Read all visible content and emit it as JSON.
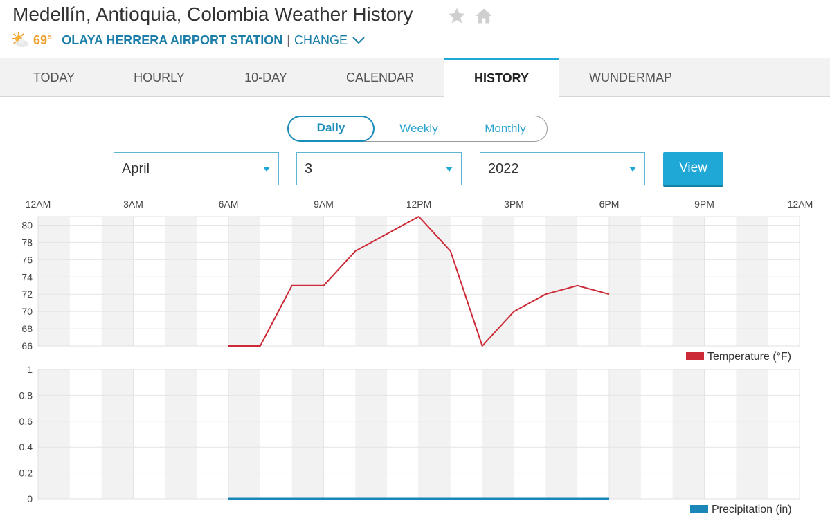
{
  "header": {
    "title": "Medellín, Antioquia, Colombia Weather History",
    "current_temp": "69°",
    "station_name": "OLAYA HERRERA AIRPORT STATION",
    "separator": "|",
    "change_label": "CHANGE"
  },
  "tabs": [
    {
      "label": "TODAY"
    },
    {
      "label": "HOURLY"
    },
    {
      "label": "10-DAY"
    },
    {
      "label": "CALENDAR"
    },
    {
      "label": "HISTORY"
    },
    {
      "label": "WUNDERMAP"
    }
  ],
  "period_toggle": {
    "daily": "Daily",
    "weekly": "Weekly",
    "monthly": "Monthly",
    "selected": "Daily"
  },
  "date_selects": {
    "month": "April",
    "day": "3",
    "year": "2022"
  },
  "view_button": "View",
  "colors": {
    "accent": "#1fa8d6",
    "temperature": "#cc2a36",
    "precipitation": "#1a87b8"
  },
  "chart_data": [
    {
      "type": "line",
      "legend": "Temperature (°F)",
      "x_tick_labels": [
        "12AM",
        "3AM",
        "6AM",
        "9AM",
        "12PM",
        "3PM",
        "6PM",
        "9PM",
        "12AM"
      ],
      "y_tick_labels": [
        "80",
        "78",
        "76",
        "74",
        "72",
        "70",
        "68",
        "66"
      ],
      "ylim": [
        66,
        81
      ],
      "xlim_hours": [
        0,
        24
      ],
      "series": [
        {
          "x_hours": [
            6,
            7,
            8,
            9,
            10,
            11,
            12,
            13,
            14,
            15,
            16,
            17,
            18
          ],
          "values": [
            66,
            66,
            73,
            73,
            77,
            79,
            81,
            77,
            66,
            70,
            72,
            73,
            72
          ]
        }
      ]
    },
    {
      "type": "line",
      "legend": "Precipitation (in)",
      "y_tick_labels": [
        "1",
        "0.8",
        "0.6",
        "0.4",
        "0.2",
        "0"
      ],
      "ylim": [
        0,
        1
      ],
      "xlim_hours": [
        0,
        24
      ],
      "series": [
        {
          "x_hours": [
            6,
            18
          ],
          "values": [
            0,
            0
          ]
        }
      ]
    }
  ]
}
